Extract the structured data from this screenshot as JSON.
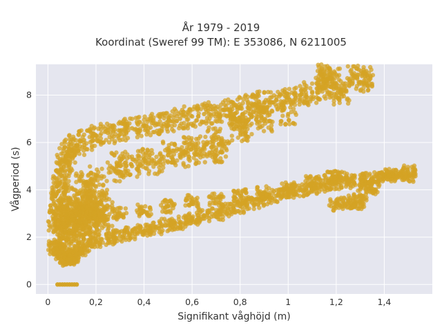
{
  "chart_data": {
    "type": "scatter",
    "title_lines": [
      "År 1979 - 2019",
      "Koordinat (Sweref 99 TM): E 353086, N 6211005"
    ],
    "xlabel": "Signifikant våghöjd (m)",
    "ylabel": "Vågperiod (s)",
    "xlim": [
      -0.05,
      1.6
    ],
    "ylim": [
      -0.4,
      9.3
    ],
    "x_ticks": [
      0,
      0.2,
      0.4,
      0.6,
      0.8,
      1.0,
      1.2,
      1.4
    ],
    "x_tick_labels": [
      "0",
      "0,2",
      "0,4",
      "0,6",
      "0,8",
      "1",
      "1,2",
      "1,4"
    ],
    "y_ticks": [
      0,
      2,
      4,
      6,
      8
    ],
    "y_tick_labels": [
      "0",
      "2",
      "4",
      "6",
      "8"
    ],
    "grid": true,
    "marker_color": "#d4a324",
    "plot_background": "#e5e6ef",
    "series": [
      {
        "description_band": "lower_branch",
        "points": [
          [
            0.03,
            1.55
          ],
          [
            0.04,
            1.5
          ],
          [
            0.05,
            1.7
          ],
          [
            0.06,
            1.35
          ],
          [
            0.07,
            1.2
          ],
          [
            0.08,
            1.1
          ],
          [
            0.09,
            1.05
          ],
          [
            0.1,
            1.15
          ],
          [
            0.12,
            1.3
          ],
          [
            0.14,
            1.5
          ],
          [
            0.16,
            1.7
          ],
          [
            0.2,
            1.85
          ],
          [
            0.25,
            1.95
          ],
          [
            0.3,
            2.05
          ],
          [
            0.35,
            2.15
          ],
          [
            0.4,
            2.25
          ],
          [
            0.45,
            2.4
          ],
          [
            0.5,
            2.5
          ],
          [
            0.55,
            2.6
          ],
          [
            0.6,
            2.75
          ],
          [
            0.65,
            2.9
          ],
          [
            0.7,
            3.0
          ],
          [
            0.75,
            3.15
          ],
          [
            0.8,
            3.3
          ],
          [
            0.85,
            3.45
          ],
          [
            0.9,
            3.6
          ],
          [
            0.95,
            3.75
          ],
          [
            1.0,
            3.9
          ],
          [
            1.05,
            4.0
          ],
          [
            1.1,
            4.1
          ],
          [
            1.15,
            4.2
          ],
          [
            1.2,
            4.3
          ],
          [
            1.25,
            4.35
          ],
          [
            1.3,
            4.45
          ],
          [
            1.35,
            4.5
          ],
          [
            1.4,
            4.6
          ],
          [
            1.45,
            4.7
          ],
          [
            1.5,
            4.6
          ],
          [
            1.5,
            4.75
          ],
          [
            0.2,
            2.9
          ],
          [
            0.3,
            3.0
          ],
          [
            0.4,
            3.1
          ],
          [
            0.5,
            3.3
          ],
          [
            0.6,
            3.5
          ],
          [
            0.7,
            3.6
          ],
          [
            0.8,
            3.75
          ],
          [
            0.9,
            3.9
          ],
          [
            1.0,
            4.05
          ],
          [
            1.1,
            4.3
          ],
          [
            1.2,
            3.4
          ],
          [
            1.25,
            3.5
          ],
          [
            1.28,
            3.45
          ],
          [
            1.3,
            3.55
          ],
          [
            1.32,
            4.2
          ],
          [
            1.35,
            4.05
          ],
          [
            1.18,
            4.5
          ],
          [
            1.22,
            4.55
          ],
          [
            1.42,
            4.6
          ]
        ]
      },
      {
        "description_band": "upper_branch",
        "points": [
          [
            0.05,
            4.3
          ],
          [
            0.06,
            4.8
          ],
          [
            0.07,
            5.2
          ],
          [
            0.08,
            5.5
          ],
          [
            0.1,
            5.7
          ],
          [
            0.12,
            5.9
          ],
          [
            0.15,
            6.1
          ],
          [
            0.2,
            6.3
          ],
          [
            0.25,
            6.4
          ],
          [
            0.3,
            6.5
          ],
          [
            0.35,
            6.6
          ],
          [
            0.4,
            6.7
          ],
          [
            0.45,
            6.8
          ],
          [
            0.5,
            6.9
          ],
          [
            0.55,
            7.0
          ],
          [
            0.6,
            7.1
          ],
          [
            0.65,
            7.2
          ],
          [
            0.7,
            7.3
          ],
          [
            0.75,
            7.4
          ],
          [
            0.8,
            7.5
          ],
          [
            0.85,
            7.6
          ],
          [
            0.9,
            7.7
          ],
          [
            0.95,
            7.8
          ],
          [
            1.0,
            7.9
          ],
          [
            1.05,
            8.0
          ],
          [
            1.1,
            8.1
          ],
          [
            1.15,
            8.3
          ],
          [
            1.16,
            8.6
          ],
          [
            1.18,
            8.7
          ],
          [
            1.2,
            8.3
          ],
          [
            1.22,
            8.05
          ],
          [
            1.15,
            8.85
          ],
          [
            1.28,
            8.8
          ],
          [
            1.3,
            8.55
          ],
          [
            1.32,
            8.8
          ],
          [
            0.3,
            5.2
          ],
          [
            0.4,
            5.3
          ],
          [
            0.5,
            5.6
          ],
          [
            0.6,
            5.9
          ],
          [
            0.7,
            6.2
          ],
          [
            0.8,
            6.5
          ],
          [
            0.9,
            6.9
          ],
          [
            1.0,
            7.2
          ],
          [
            0.35,
            5.0
          ],
          [
            0.28,
            4.8
          ],
          [
            0.2,
            4.6
          ],
          [
            0.15,
            4.3
          ],
          [
            0.45,
            5.1
          ],
          [
            0.55,
            5.4
          ],
          [
            0.88,
            7.3
          ],
          [
            0.82,
            6.6
          ],
          [
            0.78,
            7.0
          ],
          [
            0.68,
            5.8
          ],
          [
            0.62,
            5.5
          ],
          [
            0.72,
            5.6
          ]
        ]
      },
      {
        "description_band": "low_height_column",
        "points": [
          [
            0.03,
            2.8
          ],
          [
            0.04,
            3.2
          ],
          [
            0.05,
            3.6
          ],
          [
            0.06,
            2.5
          ],
          [
            0.07,
            2.2
          ],
          [
            0.08,
            3.0
          ],
          [
            0.09,
            2.6
          ],
          [
            0.1,
            3.4
          ],
          [
            0.11,
            2.9
          ],
          [
            0.12,
            2.4
          ],
          [
            0.13,
            2.7
          ],
          [
            0.14,
            3.1
          ],
          [
            0.15,
            3.3
          ],
          [
            0.16,
            2.6
          ],
          [
            0.17,
            3.7
          ],
          [
            0.18,
            3.0
          ],
          [
            0.19,
            2.8
          ],
          [
            0.2,
            3.2
          ],
          [
            0.22,
            3.4
          ],
          [
            0.24,
            2.9
          ]
        ]
      },
      {
        "description_band": "zero_period",
        "points": [
          [
            0.04,
            0
          ],
          [
            0.05,
            0
          ],
          [
            0.06,
            0
          ],
          [
            0.07,
            0
          ],
          [
            0.08,
            0
          ],
          [
            0.09,
            0
          ],
          [
            0.1,
            0
          ],
          [
            0.11,
            0
          ],
          [
            0.12,
            0
          ]
        ]
      }
    ]
  }
}
